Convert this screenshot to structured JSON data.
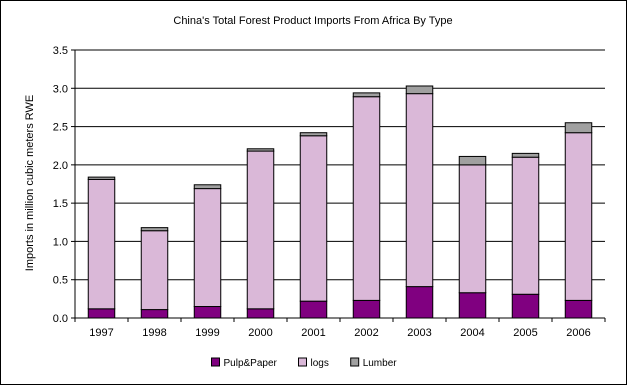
{
  "chart_data": {
    "type": "bar",
    "stacked": true,
    "title": "China's Total Forest Product Imports From Africa By Type",
    "xlabel": "",
    "ylabel": "Imports in million cubic meters RWE",
    "ylim": [
      0,
      3.5
    ],
    "yticks": [
      "0.0",
      "0.5",
      "1.0",
      "1.5",
      "2.0",
      "2.5",
      "3.0",
      "3.5"
    ],
    "grid": true,
    "legend_position": "bottom",
    "categories": [
      "1997",
      "1998",
      "1999",
      "2000",
      "2001",
      "2002",
      "2003",
      "2004",
      "2005",
      "2006"
    ],
    "series": [
      {
        "name": "Pulp&Paper",
        "color": "#800080",
        "values": [
          0.12,
          0.11,
          0.15,
          0.12,
          0.22,
          0.23,
          0.41,
          0.33,
          0.31,
          0.23
        ]
      },
      {
        "name": "logs",
        "color": "#dab8d8",
        "values": [
          1.69,
          1.03,
          1.54,
          2.06,
          2.16,
          2.66,
          2.52,
          1.67,
          1.79,
          2.19
        ]
      },
      {
        "name": "Lumber",
        "color": "#a0a0a0",
        "values": [
          0.03,
          0.04,
          0.05,
          0.03,
          0.04,
          0.05,
          0.1,
          0.11,
          0.05,
          0.13
        ]
      }
    ]
  }
}
